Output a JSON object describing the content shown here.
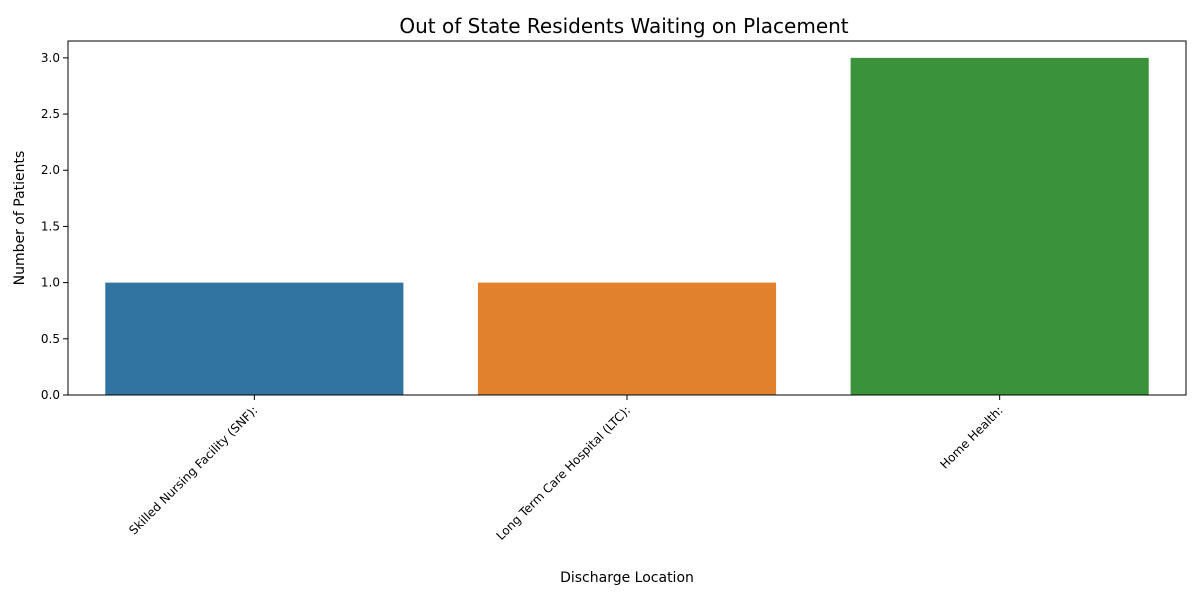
{
  "chart_data": {
    "type": "bar",
    "title": "Out of State Residents Waiting on Placement",
    "xlabel": "Discharge Location",
    "ylabel": "Number of Patients",
    "categories": [
      "Skilled Nursing Facility (SNF):",
      "Long Term Care Hospital (LTC):",
      "Home Health:"
    ],
    "values": [
      1,
      1,
      3
    ],
    "colors": [
      "#3274a1",
      "#e1812c",
      "#3a923a"
    ],
    "ylim": [
      0,
      3.15
    ],
    "yticks": [
      0.0,
      0.5,
      1.0,
      1.5,
      2.0,
      2.5,
      3.0
    ],
    "ytick_labels": [
      "0.0",
      "0.5",
      "1.0",
      "1.5",
      "2.0",
      "2.5",
      "3.0"
    ],
    "grid": false,
    "legend": "none"
  }
}
